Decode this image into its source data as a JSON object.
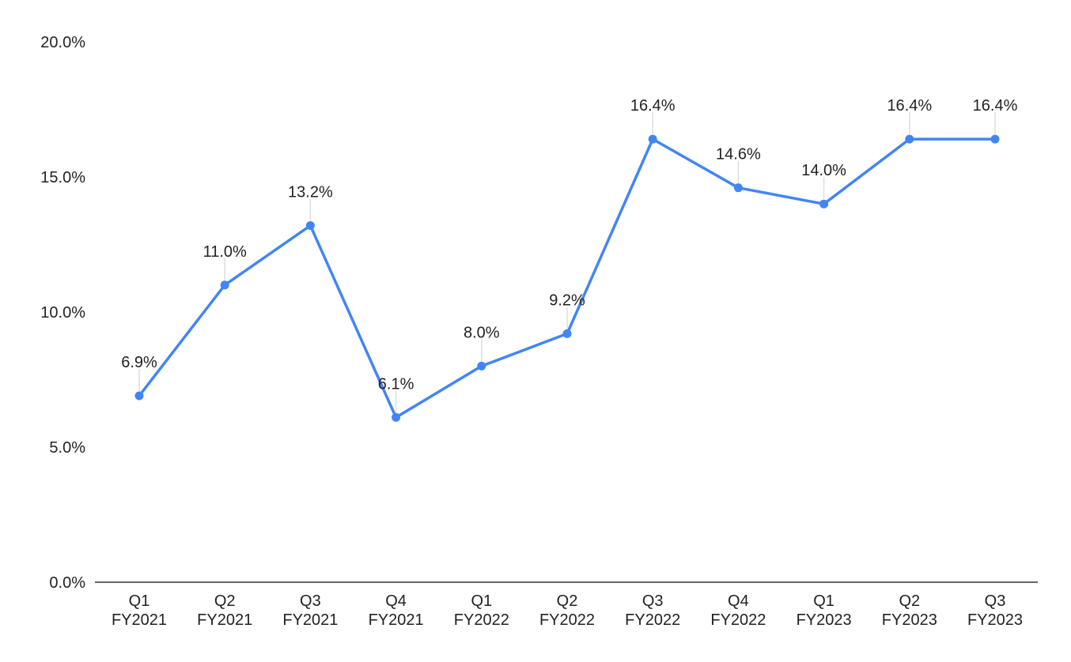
{
  "chart_data": {
    "type": "line",
    "title": "",
    "xlabel": "",
    "ylabel": "",
    "categories": [
      [
        "Q1",
        "FY2021"
      ],
      [
        "Q2",
        "FY2021"
      ],
      [
        "Q3",
        "FY2021"
      ],
      [
        "Q4",
        "FY2021"
      ],
      [
        "Q1",
        "FY2022"
      ],
      [
        "Q2",
        "FY2022"
      ],
      [
        "Q3",
        "FY2022"
      ],
      [
        "Q4",
        "FY2022"
      ],
      [
        "Q1",
        "FY2023"
      ],
      [
        "Q2",
        "FY2023"
      ],
      [
        "Q3",
        "FY2023"
      ]
    ],
    "series": [
      {
        "values": [
          6.9,
          11.0,
          13.2,
          6.1,
          8.0,
          9.2,
          16.4,
          14.6,
          14.0,
          16.4,
          16.4
        ],
        "labels": [
          "6.9%",
          "11.0%",
          "13.2%",
          "6.1%",
          "8.0%",
          "9.2%",
          "16.4%",
          "14.6%",
          "14.0%",
          "16.4%",
          "16.4%"
        ],
        "color": "#4285f4"
      }
    ],
    "yticks": [
      {
        "value": 0,
        "label": "0.0%"
      },
      {
        "value": 5,
        "label": "5.0%"
      },
      {
        "value": 10,
        "label": "10.0%"
      },
      {
        "value": 15,
        "label": "15.0%"
      },
      {
        "value": 20,
        "label": "20.0%"
      }
    ],
    "ylim": [
      0,
      20
    ],
    "grid": false,
    "legend": "none",
    "colors": {
      "line": "#4285f4",
      "axis": "#333333",
      "text": "#222222",
      "leader": "#dddddd"
    }
  }
}
